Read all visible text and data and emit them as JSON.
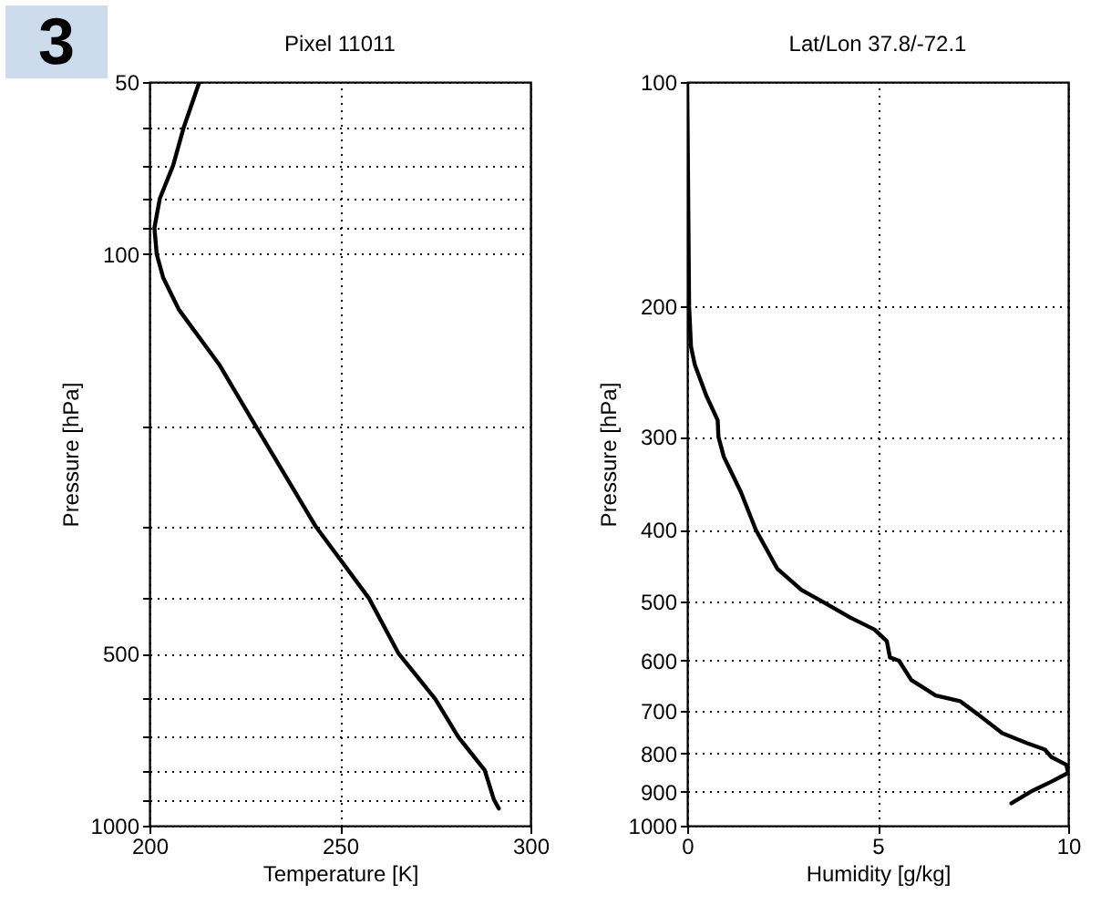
{
  "chart_data": [
    {
      "type": "line",
      "title": "Pixel 11011",
      "xlabel": "Temperature [K]",
      "ylabel": "Pressure [hPa]",
      "annotations": [
        "3"
      ],
      "series": [
        {
          "color": "#000000",
          "x": [
            213.1,
            209.0,
            206.2,
            202.7,
            201.3,
            201.9,
            203.6,
            207.7,
            218.3,
            227.9,
            243.7,
            257.6,
            265.4,
            275.0,
            281.1,
            288.0,
            290.4,
            291.7
          ],
          "values": [
            50,
            60,
            70,
            80,
            90,
            100,
            110,
            125,
            156,
            200,
            300,
            400,
            500,
            600,
            700,
            800,
            900,
            933
          ]
        }
      ],
      "xlim": [
        200,
        300
      ],
      "xticks": [
        200,
        250,
        300
      ],
      "ylim": [
        1000,
        50
      ],
      "log": "y",
      "grid": true,
      "yticks": [
        50,
        {
          "value": 60,
          "label": null
        },
        {
          "value": 70,
          "label": null
        },
        {
          "value": 80,
          "label": null
        },
        {
          "value": 90,
          "label": null
        },
        100,
        {
          "value": 200,
          "label": null
        },
        {
          "value": 300,
          "label": null
        },
        {
          "value": 400,
          "label": null
        },
        500,
        {
          "value": 600,
          "label": null
        },
        {
          "value": 700,
          "label": null
        },
        {
          "value": 800,
          "label": null
        },
        {
          "value": 900,
          "label": null
        },
        1000
      ]
    },
    {
      "type": "line",
      "title": "Lat/Lon 37.8/-72.1",
      "xlabel": "Humidity [g/kg]",
      "ylabel": "Pressure [hPa]",
      "series": [
        {
          "color": "#000000",
          "x": [
            0.0,
            0.05,
            0.1,
            0.2,
            0.5,
            0.8,
            0.82,
            0.96,
            1.41,
            1.8,
            2.36,
            3.0,
            3.56,
            4.28,
            4.92,
            5.24,
            5.32,
            5.56,
            5.88,
            6.52,
            7.16,
            7.64,
            8.27,
            8.91,
            9.39,
            9.55,
            9.95,
            10.0,
            9.55,
            9.07,
            8.51
          ],
          "values": [
            100,
            200,
            227,
            240,
            264,
            285,
            300,
            319,
            356,
            400,
            451,
            482,
            500,
            525,
            545,
            565,
            594,
            600,
            637,
            668,
            680,
            709,
            751,
            774,
            790,
            808,
            828,
            849,
            873,
            897,
            933
          ]
        }
      ],
      "xlim": [
        0,
        10
      ],
      "xticks": [
        0,
        5,
        10
      ],
      "ylim": [
        1000,
        100
      ],
      "log": "y",
      "grid": true,
      "yticks": [
        100,
        200,
        300,
        400,
        500,
        600,
        700,
        800,
        900,
        1000
      ]
    }
  ]
}
